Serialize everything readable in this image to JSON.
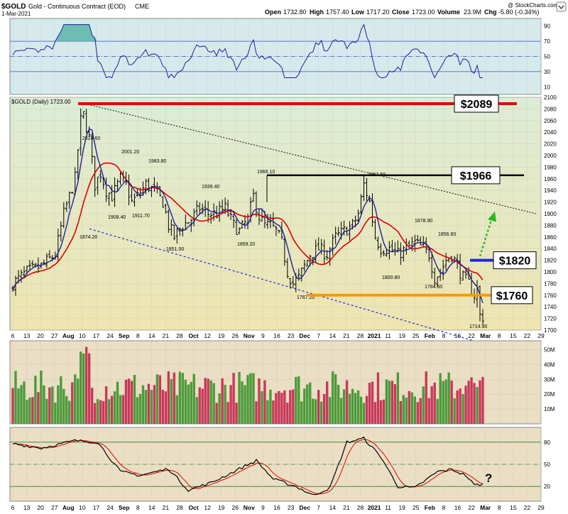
{
  "header": {
    "symbol": "$GOLD",
    "description": "Gold - Continuous Contract (EOD)",
    "exchange": "CME",
    "date": "1-Mar-2021",
    "open_label": "Open",
    "open": "1732.80",
    "high_label": "High",
    "high": "1757.40",
    "low_label": "Low",
    "low": "1717.20",
    "close_label": "Close",
    "close": "1723.00",
    "volume_label": "Volume",
    "volume": "23.9M",
    "chg_label": "Chg",
    "chg": "-5.80 (-0.34%)",
    "copyright": "@ StockCharts.com"
  },
  "colors": {
    "price_bg_top": "#dcecd6",
    "price_bg_bottom": "#eee5b0",
    "rsi_bg": "#d6eaec",
    "vol_bg": "#eadfc4",
    "stoch_bg": "#eadfc4",
    "ma_fast": "#1f1f9c",
    "ma_slow": "#e00000",
    "resistance_2089": "#e60000",
    "resistance_1966": "#000000",
    "level_1820": "#1a2bd6",
    "level_1760": "#ff9800",
    "arrow": "#2bb52b",
    "trend_lower": "#1a2bd6",
    "vol_up": "#4c9a3a",
    "vol_down": "#c8385a"
  },
  "chart_data": [
    {
      "type": "line",
      "panel": "RSI",
      "y_ticks": [
        "90",
        "70",
        "50",
        "30",
        "10"
      ],
      "ylim": [
        0,
        100
      ],
      "reference_lines": [
        70,
        50,
        30
      ]
    },
    {
      "type": "candlestick",
      "panel": "price",
      "legend": "$GOLD (Daily) 1723.00",
      "ylim": [
        1700,
        2100
      ],
      "y_ticks": [
        "2100",
        "2080",
        "2060",
        "2040",
        "2020",
        "2000",
        "1980",
        "1960",
        "1940",
        "1920",
        "1900",
        "1880",
        "1860",
        "1840",
        "1820",
        "1800",
        "1780",
        "1760",
        "1740",
        "1720",
        "1700"
      ],
      "x_ticks": [
        "6",
        "13",
        "20",
        "27",
        "Aug",
        "10",
        "17",
        "24",
        "Sep",
        "8",
        "14",
        "21",
        "28",
        "Oct",
        "12",
        "19",
        "26",
        "Nov",
        "9",
        "16",
        "23",
        "Dec",
        "7",
        "14",
        "21",
        "28",
        "2021",
        "11",
        "19",
        "25",
        "Feb",
        "8",
        "16",
        "22",
        "Mar",
        "8",
        "15",
        "22",
        "29"
      ],
      "price_labels": [
        {
          "text": "2024.60",
          "value": 2024.6
        },
        {
          "text": "2001.20",
          "value": 2001.2
        },
        {
          "text": "1983.80",
          "value": 1983.8
        },
        {
          "text": "1939.40",
          "value": 1939.4
        },
        {
          "text": "1966.10",
          "value": 1966.1
        },
        {
          "text": "1962.50",
          "value": 1962.5
        },
        {
          "text": "1878.90",
          "value": 1878.9
        },
        {
          "text": "1856.60",
          "value": 1856.6
        },
        {
          "text": "1908.40",
          "value": 1908.4
        },
        {
          "text": "1911.70",
          "value": 1911.7
        },
        {
          "text": "1874.20",
          "value": 1874.2
        },
        {
          "text": "1851.00",
          "value": 1851.0
        },
        {
          "text": "1859.20",
          "value": 1859.2
        },
        {
          "text": "1800.80",
          "value": 1800.8
        },
        {
          "text": "1784.60",
          "value": 1784.6
        },
        {
          "text": "1767.20",
          "value": 1767.2
        },
        {
          "text": "1714.90",
          "value": 1714.9
        }
      ],
      "levels": [
        {
          "label": "$2089",
          "value": 2089
        },
        {
          "label": "$1966",
          "value": 1966
        },
        {
          "label": "$1820",
          "value": 1820
        },
        {
          "label": "$1760",
          "value": 1760
        }
      ]
    },
    {
      "type": "bar",
      "panel": "volume",
      "y_ticks": [
        "50M",
        "40M",
        "30M",
        "20M",
        "10M"
      ],
      "ylim": [
        0,
        56
      ]
    },
    {
      "type": "line",
      "panel": "stochastic",
      "y_ticks": [
        "80",
        "50",
        "20"
      ],
      "ylim": [
        0,
        100
      ],
      "reference_lines": [
        80,
        50,
        20
      ],
      "x_ticks": [
        "6",
        "13",
        "20",
        "27",
        "Aug",
        "10",
        "17",
        "24",
        "Sep",
        "8",
        "14",
        "21",
        "28",
        "Oct",
        "12",
        "19",
        "26",
        "Nov",
        "9",
        "16",
        "23",
        "Dec",
        "7",
        "14",
        "21",
        "28",
        "2021",
        "11",
        "19",
        "25",
        "Feb",
        "8",
        "16",
        "22",
        "Mar",
        "8",
        "15",
        "22",
        "29"
      ],
      "annotation": "?"
    }
  ]
}
